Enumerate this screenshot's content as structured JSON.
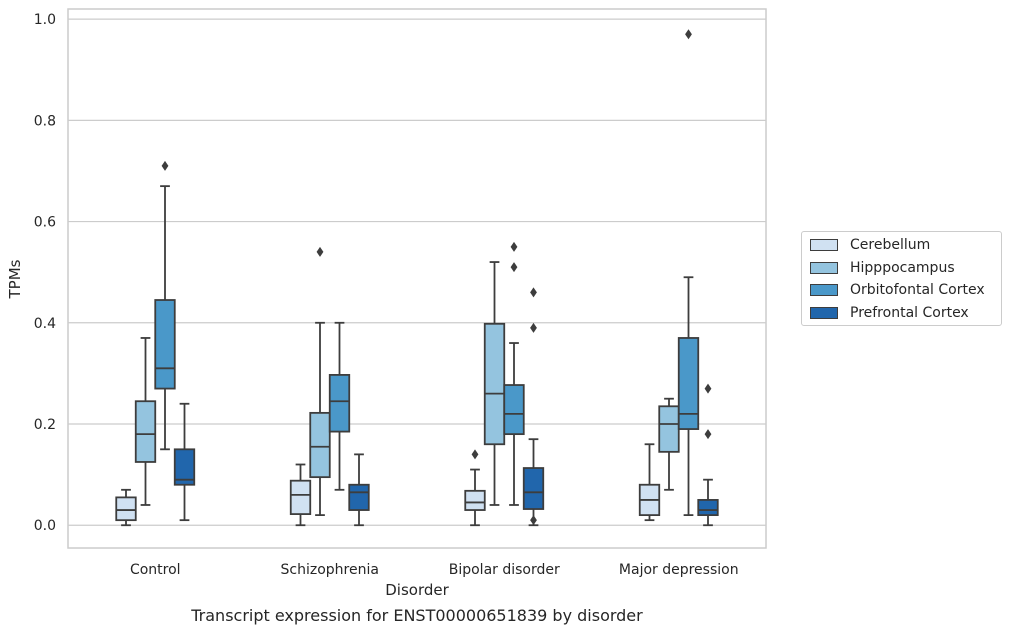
{
  "caption": "Transcript expression for ENST00000651839 by disorder",
  "chart_data": {
    "type": "box",
    "xlabel": "Disorder",
    "ylabel": "TPMs",
    "ylim": [
      -0.045,
      1.02
    ],
    "yticks": [
      "0.0",
      "0.2",
      "0.4",
      "0.6",
      "0.8",
      "1.0"
    ],
    "ytick_values": [
      0.0,
      0.2,
      0.4,
      0.6,
      0.8,
      1.0
    ],
    "grid": true,
    "legend_position": "right",
    "categories": [
      "Control",
      "Schizophrenia",
      "Bipolar disorder",
      "Major depression"
    ],
    "series": [
      {
        "name": "Cerebellum",
        "color": "#d0e1f2",
        "boxes": [
          {
            "whisker_low": 0.0,
            "q1": 0.01,
            "median": 0.03,
            "q3": 0.055,
            "whisker_high": 0.07,
            "outliers": []
          },
          {
            "whisker_low": 0.0,
            "q1": 0.022,
            "median": 0.06,
            "q3": 0.088,
            "whisker_high": 0.12,
            "outliers": []
          },
          {
            "whisker_low": 0.0,
            "q1": 0.03,
            "median": 0.045,
            "q3": 0.068,
            "whisker_high": 0.11,
            "outliers": [
              0.14
            ]
          },
          {
            "whisker_low": 0.01,
            "q1": 0.02,
            "median": 0.05,
            "q3": 0.08,
            "whisker_high": 0.16,
            "outliers": []
          }
        ]
      },
      {
        "name": "Hipppocampus",
        "color": "#94c4df",
        "boxes": [
          {
            "whisker_low": 0.04,
            "q1": 0.125,
            "median": 0.18,
            "q3": 0.245,
            "whisker_high": 0.37,
            "outliers": []
          },
          {
            "whisker_low": 0.02,
            "q1": 0.095,
            "median": 0.155,
            "q3": 0.222,
            "whisker_high": 0.4,
            "outliers": [
              0.54
            ]
          },
          {
            "whisker_low": 0.04,
            "q1": 0.16,
            "median": 0.26,
            "q3": 0.398,
            "whisker_high": 0.52,
            "outliers": []
          },
          {
            "whisker_low": 0.07,
            "q1": 0.145,
            "median": 0.2,
            "q3": 0.235,
            "whisker_high": 0.25,
            "outliers": []
          }
        ]
      },
      {
        "name": "Orbitofontal Cortex",
        "color": "#4a98c9",
        "boxes": [
          {
            "whisker_low": 0.15,
            "q1": 0.27,
            "median": 0.31,
            "q3": 0.445,
            "whisker_high": 0.67,
            "outliers": [
              0.71
            ]
          },
          {
            "whisker_low": 0.07,
            "q1": 0.185,
            "median": 0.245,
            "q3": 0.297,
            "whisker_high": 0.4,
            "outliers": []
          },
          {
            "whisker_low": 0.04,
            "q1": 0.18,
            "median": 0.22,
            "q3": 0.277,
            "whisker_high": 0.36,
            "outliers": [
              0.55,
              0.51
            ]
          },
          {
            "whisker_low": 0.02,
            "q1": 0.19,
            "median": 0.22,
            "q3": 0.37,
            "whisker_high": 0.49,
            "outliers": [
              0.97
            ]
          }
        ]
      },
      {
        "name": "Prefrontal Cortex",
        "color": "#2166ac",
        "boxes": [
          {
            "whisker_low": 0.01,
            "q1": 0.08,
            "median": 0.09,
            "q3": 0.15,
            "whisker_high": 0.24,
            "outliers": []
          },
          {
            "whisker_low": 0.0,
            "q1": 0.03,
            "median": 0.065,
            "q3": 0.08,
            "whisker_high": 0.14,
            "outliers": []
          },
          {
            "whisker_low": 0.0,
            "q1": 0.032,
            "median": 0.065,
            "q3": 0.113,
            "whisker_high": 0.17,
            "outliers": [
              0.46,
              0.39,
              0.01
            ]
          },
          {
            "whisker_low": 0.0,
            "q1": 0.02,
            "median": 0.03,
            "q3": 0.05,
            "whisker_high": 0.09,
            "outliers": [
              0.27,
              0.18
            ]
          }
        ]
      }
    ]
  }
}
